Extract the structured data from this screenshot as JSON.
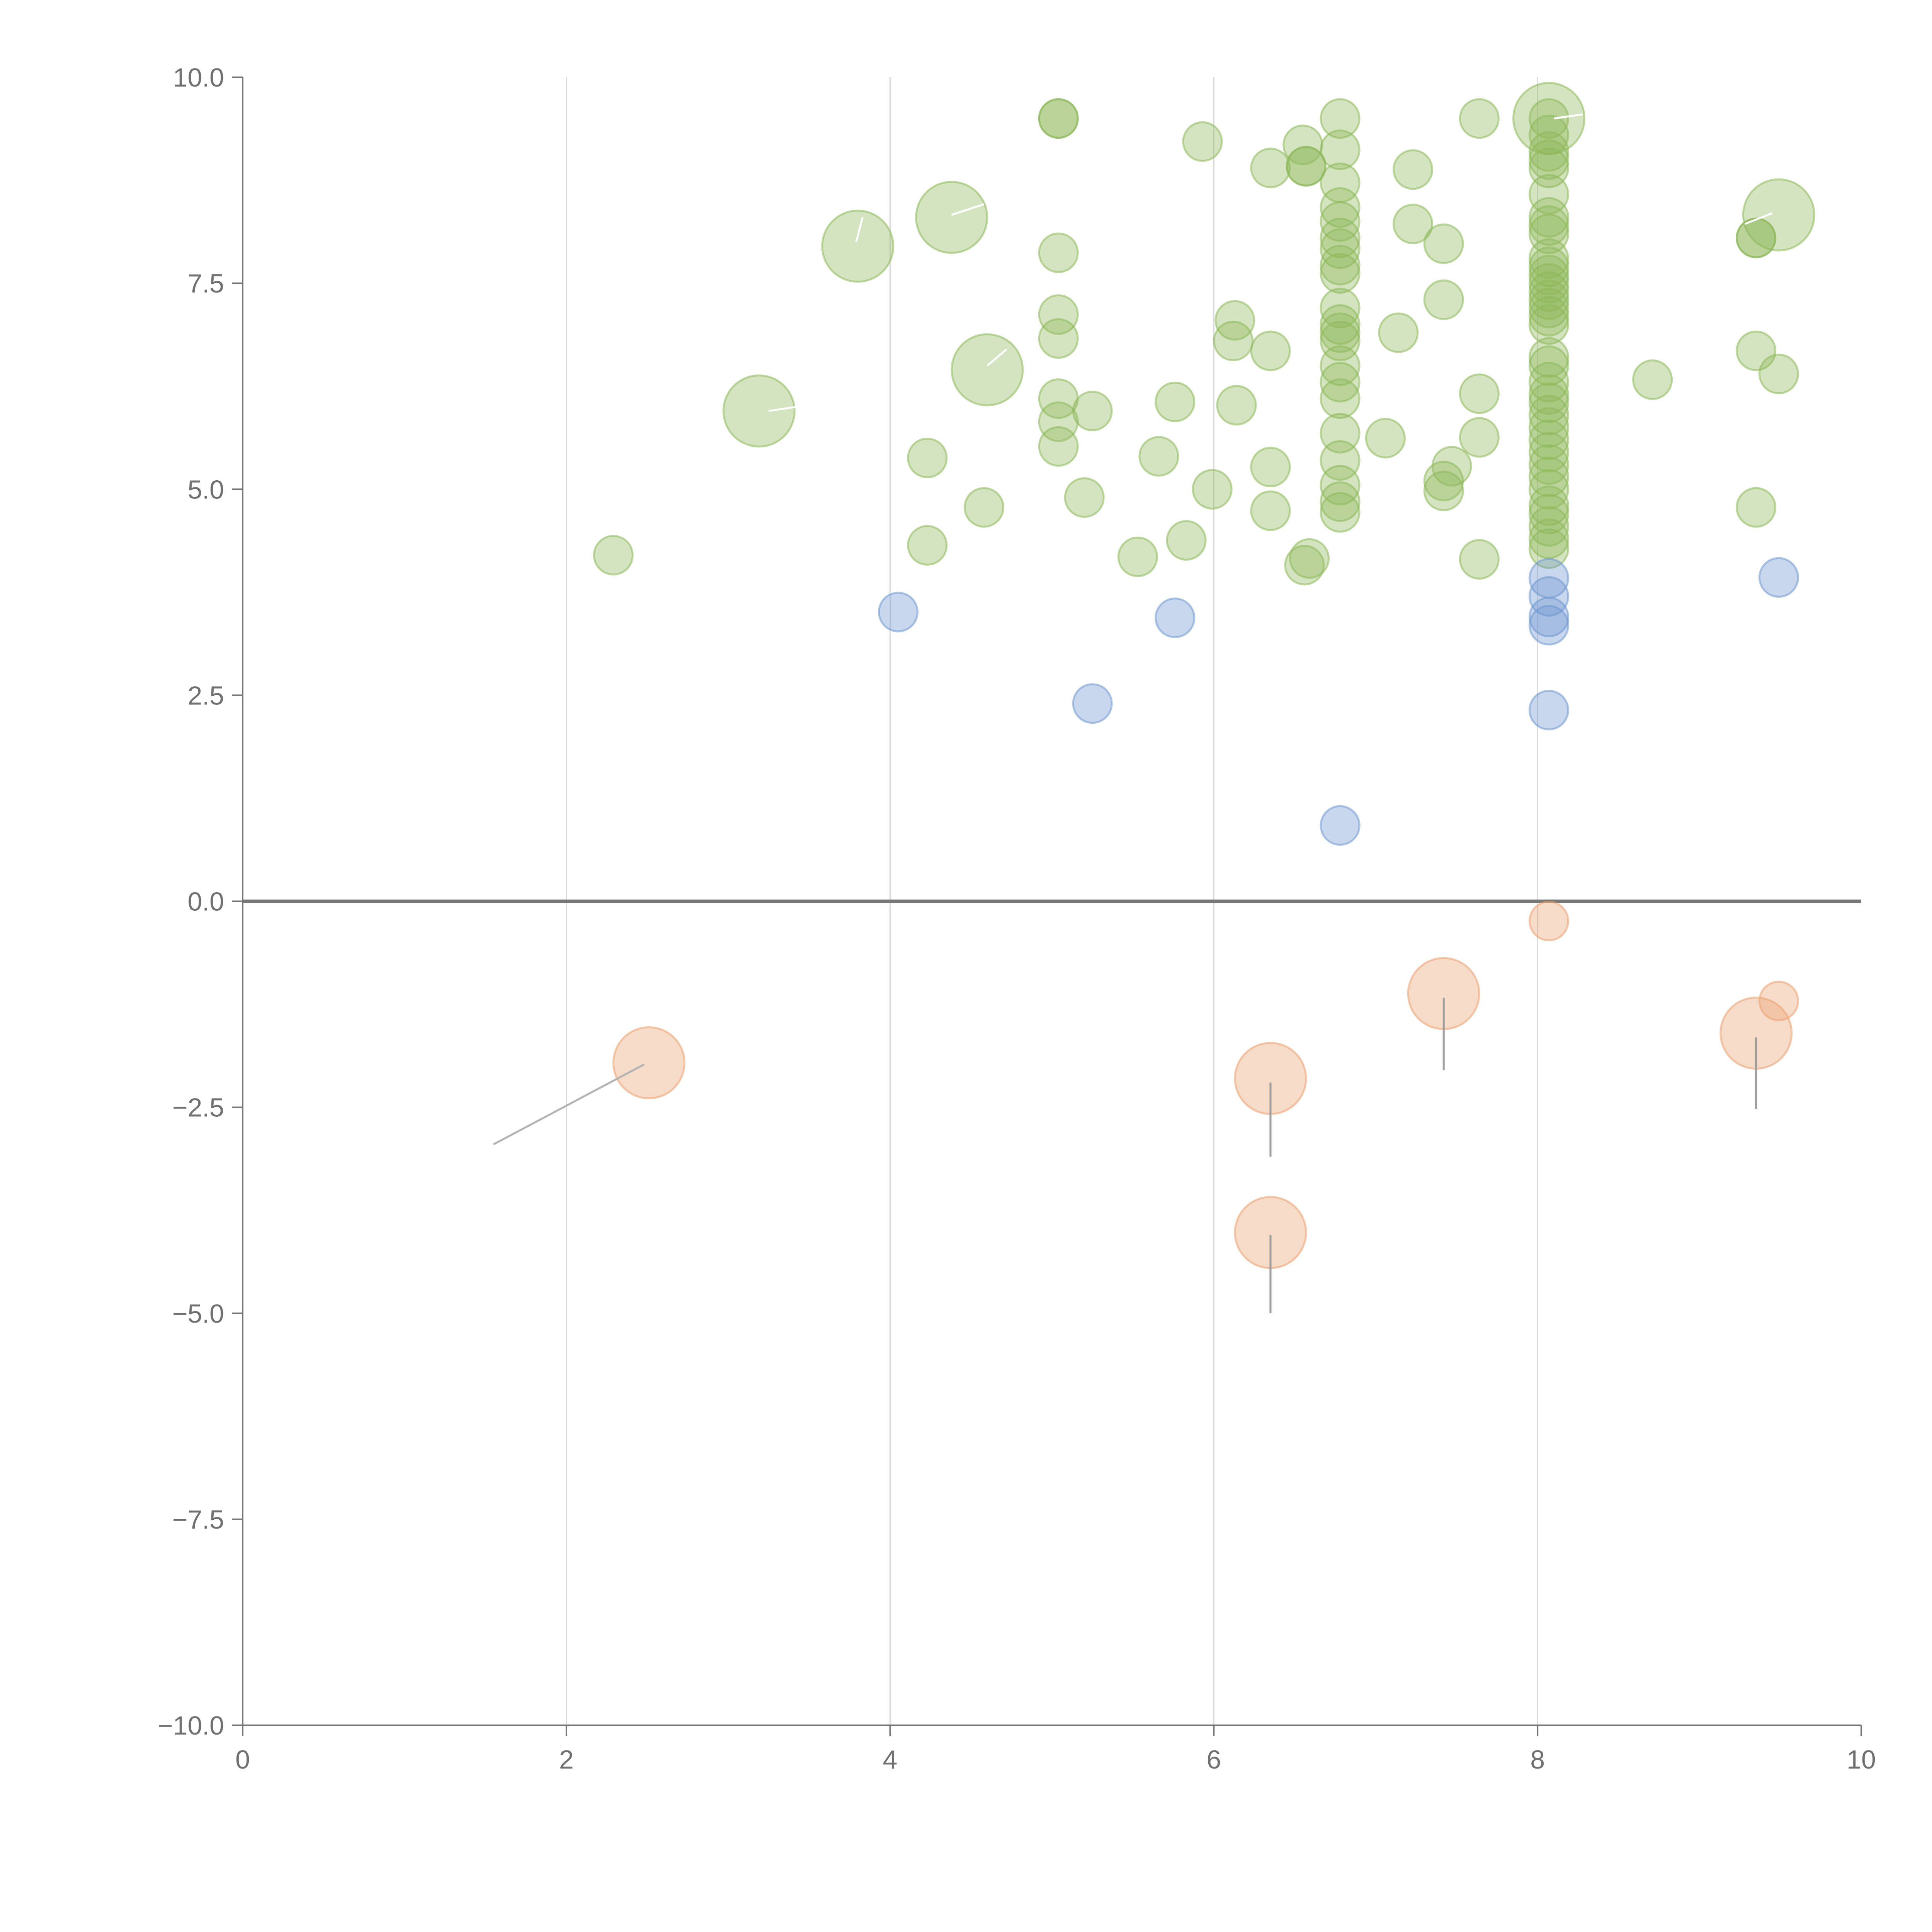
{
  "chart_data": {
    "type": "scatter",
    "title": "",
    "xlabel": "",
    "ylabel": "",
    "xlim": [
      0,
      10
    ],
    "ylim": [
      -10,
      10
    ],
    "x_ticks": [
      "0",
      "2",
      "4",
      "6",
      "8",
      "10"
    ],
    "x_tick_values": [
      0,
      2,
      4,
      6,
      8,
      10
    ],
    "y_ticks": [
      "10.0",
      "7.5",
      "5.0",
      "2.5",
      "0.0",
      "−2.5",
      "−5.0",
      "−7.5",
      "−10.0"
    ],
    "y_tick_values": [
      10,
      7.5,
      5,
      2.5,
      0,
      -2.5,
      -5,
      -7.5,
      -10
    ],
    "grid": "vertical",
    "zero_line": true,
    "legend": "none",
    "series": [
      {
        "name": "green",
        "color": "#8db85a",
        "points": [
          {
            "x": 2.29,
            "y": 4.2,
            "s": 1
          },
          {
            "x": 3.19,
            "y": 5.95,
            "s": 2
          },
          {
            "x": 3.8,
            "y": 7.95,
            "s": 2
          },
          {
            "x": 4.38,
            "y": 8.3,
            "s": 2
          },
          {
            "x": 4.6,
            "y": 6.45,
            "s": 2
          },
          {
            "x": 4.23,
            "y": 5.38,
            "s": 1
          },
          {
            "x": 4.23,
            "y": 4.32,
            "s": 1
          },
          {
            "x": 4.58,
            "y": 4.78,
            "s": 1
          },
          {
            "x": 5.04,
            "y": 9.5,
            "s": 1
          },
          {
            "x": 5.04,
            "y": 9.5,
            "s": 1
          },
          {
            "x": 5.04,
            "y": 7.87,
            "s": 1
          },
          {
            "x": 5.04,
            "y": 7.12,
            "s": 1
          },
          {
            "x": 5.04,
            "y": 6.83,
            "s": 1
          },
          {
            "x": 5.04,
            "y": 6.1,
            "s": 1
          },
          {
            "x": 5.04,
            "y": 5.82,
            "s": 1
          },
          {
            "x": 5.04,
            "y": 5.52,
            "s": 1
          },
          {
            "x": 5.25,
            "y": 5.95,
            "s": 1
          },
          {
            "x": 5.2,
            "y": 4.9,
            "s": 1
          },
          {
            "x": 5.53,
            "y": 4.18,
            "s": 1
          },
          {
            "x": 5.66,
            "y": 5.4,
            "s": 1
          },
          {
            "x": 5.76,
            "y": 6.06,
            "s": 1
          },
          {
            "x": 5.83,
            "y": 4.38,
            "s": 1
          },
          {
            "x": 5.93,
            "y": 9.22,
            "s": 1
          },
          {
            "x": 5.99,
            "y": 5.0,
            "s": 1
          },
          {
            "x": 6.13,
            "y": 7.05,
            "s": 1
          },
          {
            "x": 6.12,
            "y": 6.8,
            "s": 1
          },
          {
            "x": 6.14,
            "y": 6.02,
            "s": 1
          },
          {
            "x": 6.35,
            "y": 8.9,
            "s": 1
          },
          {
            "x": 6.35,
            "y": 6.68,
            "s": 1
          },
          {
            "x": 6.35,
            "y": 5.27,
            "s": 1
          },
          {
            "x": 6.35,
            "y": 4.74,
            "s": 1
          },
          {
            "x": 6.55,
            "y": 9.18,
            "s": 1
          },
          {
            "x": 6.57,
            "y": 8.92,
            "s": 1
          },
          {
            "x": 6.57,
            "y": 8.92,
            "s": 1
          },
          {
            "x": 6.56,
            "y": 4.08,
            "s": 1
          },
          {
            "x": 6.59,
            "y": 4.16,
            "s": 1
          },
          {
            "x": 6.78,
            "y": 9.5,
            "s": 1
          },
          {
            "x": 6.78,
            "y": 9.12,
            "s": 1
          },
          {
            "x": 6.78,
            "y": 8.72,
            "s": 1
          },
          {
            "x": 6.78,
            "y": 8.42,
            "s": 1
          },
          {
            "x": 6.78,
            "y": 8.25,
            "s": 1
          },
          {
            "x": 6.78,
            "y": 8.05,
            "s": 1
          },
          {
            "x": 6.78,
            "y": 7.92,
            "s": 1
          },
          {
            "x": 6.78,
            "y": 7.72,
            "s": 1
          },
          {
            "x": 6.78,
            "y": 7.62,
            "s": 1
          },
          {
            "x": 6.78,
            "y": 7.2,
            "s": 1
          },
          {
            "x": 6.78,
            "y": 7.0,
            "s": 1
          },
          {
            "x": 6.78,
            "y": 6.9,
            "s": 1
          },
          {
            "x": 6.78,
            "y": 6.8,
            "s": 1
          },
          {
            "x": 6.78,
            "y": 6.5,
            "s": 1
          },
          {
            "x": 6.78,
            "y": 6.3,
            "s": 1
          },
          {
            "x": 6.78,
            "y": 6.1,
            "s": 1
          },
          {
            "x": 6.78,
            "y": 5.68,
            "s": 1
          },
          {
            "x": 6.78,
            "y": 5.35,
            "s": 1
          },
          {
            "x": 6.78,
            "y": 5.05,
            "s": 1
          },
          {
            "x": 6.78,
            "y": 4.85,
            "s": 1
          },
          {
            "x": 6.78,
            "y": 4.72,
            "s": 1
          },
          {
            "x": 7.06,
            "y": 5.62,
            "s": 1
          },
          {
            "x": 7.14,
            "y": 6.9,
            "s": 1
          },
          {
            "x": 7.23,
            "y": 8.88,
            "s": 1
          },
          {
            "x": 7.23,
            "y": 8.22,
            "s": 1
          },
          {
            "x": 7.42,
            "y": 7.98,
            "s": 1
          },
          {
            "x": 7.42,
            "y": 7.3,
            "s": 1
          },
          {
            "x": 7.42,
            "y": 5.1,
            "s": 1
          },
          {
            "x": 7.42,
            "y": 4.98,
            "s": 1
          },
          {
            "x": 7.47,
            "y": 5.28,
            "s": 1
          },
          {
            "x": 7.64,
            "y": 9.5,
            "s": 1
          },
          {
            "x": 7.64,
            "y": 6.16,
            "s": 1
          },
          {
            "x": 7.64,
            "y": 5.63,
            "s": 1
          },
          {
            "x": 7.64,
            "y": 4.15,
            "s": 1
          },
          {
            "x": 8.07,
            "y": 9.5,
            "s": 2
          },
          {
            "x": 8.07,
            "y": 9.5,
            "s": 1
          },
          {
            "x": 8.07,
            "y": 9.3,
            "s": 1
          },
          {
            "x": 8.07,
            "y": 9.1,
            "s": 1
          },
          {
            "x": 8.07,
            "y": 9.0,
            "s": 1
          },
          {
            "x": 8.07,
            "y": 8.9,
            "s": 1
          },
          {
            "x": 8.07,
            "y": 8.58,
            "s": 1
          },
          {
            "x": 8.07,
            "y": 8.3,
            "s": 1
          },
          {
            "x": 8.07,
            "y": 8.2,
            "s": 1
          },
          {
            "x": 8.07,
            "y": 8.1,
            "s": 1
          },
          {
            "x": 8.07,
            "y": 7.8,
            "s": 1
          },
          {
            "x": 8.07,
            "y": 7.7,
            "s": 1
          },
          {
            "x": 8.07,
            "y": 7.6,
            "s": 1
          },
          {
            "x": 8.07,
            "y": 7.5,
            "s": 1
          },
          {
            "x": 8.07,
            "y": 7.4,
            "s": 1
          },
          {
            "x": 8.07,
            "y": 7.3,
            "s": 1
          },
          {
            "x": 8.07,
            "y": 7.2,
            "s": 1
          },
          {
            "x": 8.07,
            "y": 7.1,
            "s": 1
          },
          {
            "x": 8.07,
            "y": 7.0,
            "s": 1
          },
          {
            "x": 8.07,
            "y": 6.6,
            "s": 1
          },
          {
            "x": 8.07,
            "y": 6.5,
            "s": 1
          },
          {
            "x": 8.07,
            "y": 6.3,
            "s": 1
          },
          {
            "x": 8.07,
            "y": 6.15,
            "s": 1
          },
          {
            "x": 8.07,
            "y": 6.05,
            "s": 1
          },
          {
            "x": 8.07,
            "y": 5.9,
            "s": 1
          },
          {
            "x": 8.07,
            "y": 5.75,
            "s": 1
          },
          {
            "x": 8.07,
            "y": 5.6,
            "s": 1
          },
          {
            "x": 8.07,
            "y": 5.45,
            "s": 1
          },
          {
            "x": 8.07,
            "y": 5.3,
            "s": 1
          },
          {
            "x": 8.07,
            "y": 5.15,
            "s": 1
          },
          {
            "x": 8.07,
            "y": 5.0,
            "s": 1
          },
          {
            "x": 8.07,
            "y": 4.8,
            "s": 1
          },
          {
            "x": 8.07,
            "y": 4.7,
            "s": 1
          },
          {
            "x": 8.07,
            "y": 4.55,
            "s": 1
          },
          {
            "x": 8.07,
            "y": 4.4,
            "s": 1
          },
          {
            "x": 8.07,
            "y": 4.28,
            "s": 1
          },
          {
            "x": 8.71,
            "y": 6.33,
            "s": 1
          },
          {
            "x": 9.35,
            "y": 8.05,
            "s": 1
          },
          {
            "x": 9.35,
            "y": 8.05,
            "s": 1
          },
          {
            "x": 9.35,
            "y": 6.68,
            "s": 1
          },
          {
            "x": 9.35,
            "y": 4.78,
            "s": 1
          },
          {
            "x": 9.49,
            "y": 8.33,
            "s": 2
          },
          {
            "x": 9.49,
            "y": 6.4,
            "s": 1
          }
        ]
      },
      {
        "name": "blue",
        "color": "#6f97cf",
        "points": [
          {
            "x": 4.05,
            "y": 3.51,
            "s": 1
          },
          {
            "x": 5.25,
            "y": 2.4,
            "s": 1
          },
          {
            "x": 5.76,
            "y": 3.44,
            "s": 1
          },
          {
            "x": 6.78,
            "y": 0.92,
            "s": 1
          },
          {
            "x": 8.07,
            "y": 3.92,
            "s": 1
          },
          {
            "x": 8.07,
            "y": 3.7,
            "s": 1
          },
          {
            "x": 8.07,
            "y": 3.45,
            "s": 1
          },
          {
            "x": 8.07,
            "y": 3.35,
            "s": 1
          },
          {
            "x": 8.07,
            "y": 2.32,
            "s": 1
          },
          {
            "x": 9.49,
            "y": 3.93,
            "s": 1
          }
        ]
      },
      {
        "name": "orange",
        "color": "#eba070",
        "points": [
          {
            "x": 2.51,
            "y": -1.96,
            "s": 2
          },
          {
            "x": 6.35,
            "y": -2.15,
            "s": 2
          },
          {
            "x": 6.35,
            "y": -4.02,
            "s": 2
          },
          {
            "x": 7.42,
            "y": -1.12,
            "s": 2
          },
          {
            "x": 8.07,
            "y": -0.24,
            "s": 1
          },
          {
            "x": 9.35,
            "y": -1.6,
            "s": 2
          },
          {
            "x": 9.49,
            "y": -1.21,
            "s": 1
          }
        ]
      }
    ],
    "leader_lines": [
      {
        "x1": 2.48,
        "y1": -1.98,
        "x2": 1.55,
        "y2": -2.95,
        "color": "#b3b3b3"
      },
      {
        "x1": 6.35,
        "y1": -2.2,
        "x2": 6.35,
        "y2": -3.1,
        "color": "#9c9c9c"
      },
      {
        "x1": 6.35,
        "y1": -4.05,
        "x2": 6.35,
        "y2": -5.0,
        "color": "#9c9c9c"
      },
      {
        "x1": 7.42,
        "y1": -1.17,
        "x2": 7.42,
        "y2": -2.05,
        "color": "#9c9c9c"
      },
      {
        "x1": 9.35,
        "y1": -1.65,
        "x2": 9.35,
        "y2": -2.52,
        "color": "#9c9c9c"
      },
      {
        "x1": 3.25,
        "y1": 5.95,
        "x2": 3.42,
        "y2": 6.0,
        "color": "#ffffff"
      },
      {
        "x1": 3.79,
        "y1": 8.0,
        "x2": 3.83,
        "y2": 8.3,
        "color": "#ffffff"
      },
      {
        "x1": 4.38,
        "y1": 8.33,
        "x2": 4.58,
        "y2": 8.46,
        "color": "#ffffff"
      },
      {
        "x1": 4.6,
        "y1": 6.5,
        "x2": 4.72,
        "y2": 6.7,
        "color": "#ffffff"
      },
      {
        "x1": 8.1,
        "y1": 9.5,
        "x2": 8.28,
        "y2": 9.55,
        "color": "#ffffff"
      },
      {
        "x1": 9.45,
        "y1": 8.35,
        "x2": 9.28,
        "y2": 8.22,
        "color": "#ffffff"
      }
    ]
  }
}
